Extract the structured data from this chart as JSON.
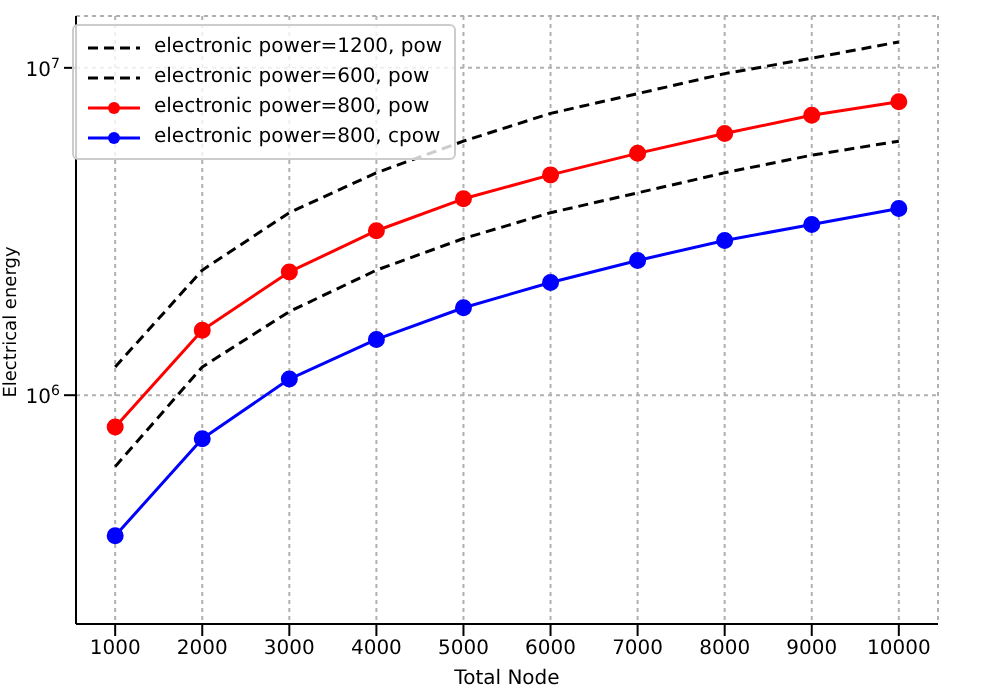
{
  "chart_data": {
    "type": "line",
    "xlabel": "Total Node",
    "ylabel": "Electrical energy",
    "x": [
      1000,
      2000,
      3000,
      4000,
      5000,
      6000,
      7000,
      8000,
      9000,
      10000
    ],
    "series": [
      {
        "name": "electronic power=1200, pow",
        "color": "#000000",
        "line_style": "dashed",
        "marker": "none",
        "values": [
          1220000,
          2410000,
          3610000,
          4780000,
          5970000,
          7260000,
          8340000,
          9600000,
          10700000,
          12000000
        ]
      },
      {
        "name": "electronic power=600, pow",
        "color": "#000000",
        "line_style": "dashed",
        "marker": "none",
        "values": [
          605000,
          1220000,
          1800000,
          2410000,
          3010000,
          3610000,
          4150000,
          4780000,
          5410000,
          5970000
        ]
      },
      {
        "name": "electronic power=800, pow",
        "color": "#ff0000",
        "line_style": "solid",
        "marker": "circle",
        "values": [
          800000,
          1580000,
          2380000,
          3180000,
          3980000,
          4710000,
          5480000,
          6300000,
          7160000,
          7880000
        ]
      },
      {
        "name": "electronic power=800, cpow",
        "color": "#0000ff",
        "line_style": "solid",
        "marker": "circle",
        "values": [
          372000,
          736000,
          1120000,
          1480000,
          1850000,
          2210000,
          2580000,
          2970000,
          3320000,
          3720000
        ]
      }
    ],
    "xlim": [
      550,
      10450
    ],
    "xticks": [
      1000,
      2000,
      3000,
      4000,
      5000,
      6000,
      7000,
      8000,
      9000,
      10000
    ],
    "ylim": [
      200000,
      14400000
    ],
    "yticks": [
      {
        "value": 1000000,
        "label": "10$^{6}$"
      },
      {
        "value": 10000000,
        "label": "10$^{7}$"
      }
    ],
    "log": true,
    "grid": true,
    "legend": "top left"
  }
}
